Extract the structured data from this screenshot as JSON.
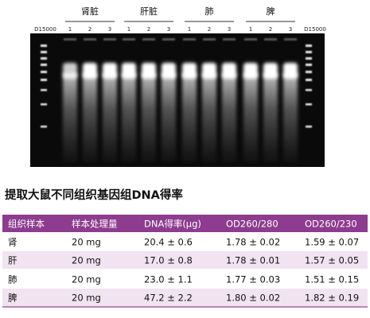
{
  "gel": {
    "marker_left": "D15000",
    "marker_right": "D15000",
    "groups": [
      {
        "label": "肾脏",
        "lanes": [
          "1",
          "2",
          "3"
        ]
      },
      {
        "label": "肝脏",
        "lanes": [
          "1",
          "2",
          "3"
        ]
      },
      {
        "label": "肺",
        "lanes": [
          "1",
          "2",
          "3"
        ]
      },
      {
        "label": "脾",
        "lanes": [
          "1",
          "2",
          "3"
        ]
      }
    ]
  },
  "title": "提取大鼠不同组织基因组DNA得率",
  "table": {
    "headers": [
      "组织样本",
      "样本处理量",
      "DNA得率(μg)",
      "OD260/280",
      "OD260/230"
    ],
    "rows": [
      [
        "肾",
        "20 mg",
        "20.4 ± 0.6",
        "1.78 ± 0.02",
        "1.59 ± 0.07"
      ],
      [
        "肝",
        "20 mg",
        "17.0 ± 0.8",
        "1.78 ± 0.01",
        "1.57 ± 0.05"
      ],
      [
        "肺",
        "20 mg",
        "23.0 ± 1.1",
        "1.77 ± 0.03",
        "1.51 ± 0.15"
      ],
      [
        "脾",
        "20 mg",
        "47.2 ± 2.2",
        "1.80 ± 0.02",
        "1.82 ± 0.19"
      ]
    ]
  }
}
